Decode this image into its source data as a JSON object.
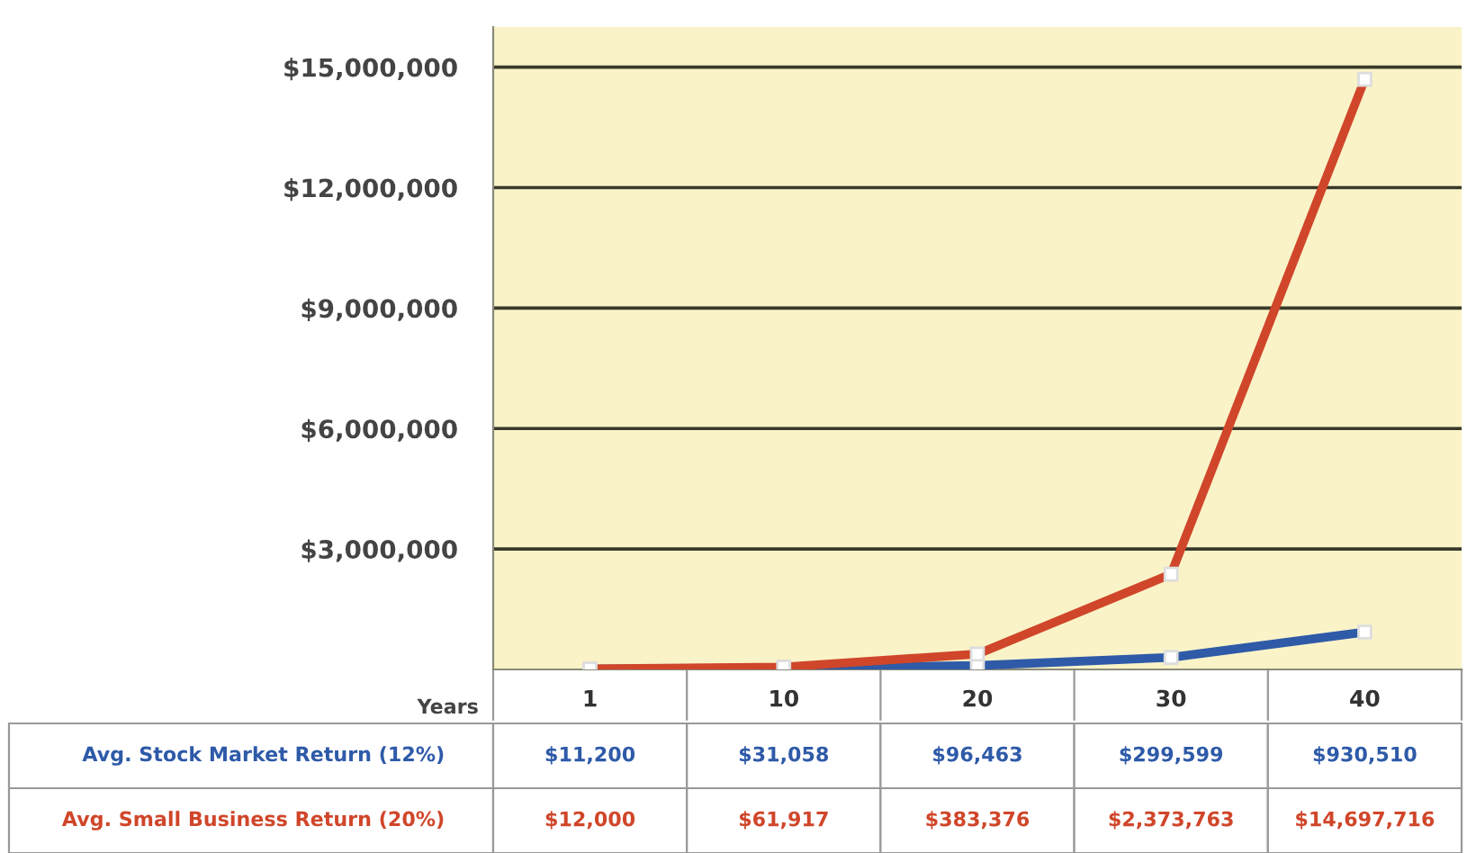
{
  "chart_data": {
    "type": "line",
    "xlabel": "Years",
    "categories": [
      "1",
      "10",
      "20",
      "30",
      "40"
    ],
    "series": [
      {
        "name": "Avg. Stock Market Return (12%)",
        "color": "#2e5aa8",
        "values": [
          11200,
          31058,
          96463,
          299599,
          930510
        ],
        "value_labels": [
          "$11,200",
          "$31,058",
          "$96,463",
          "$299,599",
          "$930,510"
        ]
      },
      {
        "name": "Avg. Small Business Return (20%)",
        "color": "#d0462a",
        "values": [
          12000,
          61917,
          383376,
          2373763,
          14697716
        ],
        "value_labels": [
          "$12,000",
          "$61,917",
          "$383,376",
          "$2,373,763",
          "$14,697,716"
        ]
      }
    ],
    "ylim": [
      0,
      16000000
    ],
    "yticks": [
      {
        "value": 3000000,
        "label": "$3,000,000"
      },
      {
        "value": 6000000,
        "label": "$6,000,000"
      },
      {
        "value": 9000000,
        "label": "$9,000,000"
      },
      {
        "value": 12000000,
        "label": "$12,000,000"
      },
      {
        "value": 15000000,
        "label": "$15,000,000"
      }
    ],
    "grid": "y",
    "marker": "square",
    "line_style": "solid",
    "legend": false
  }
}
